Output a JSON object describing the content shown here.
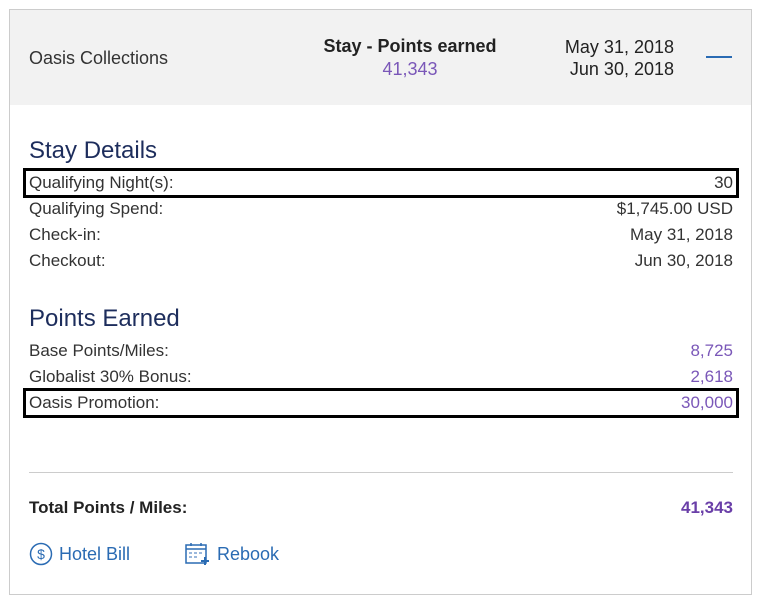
{
  "header": {
    "hotel": "Oasis Collections",
    "type": "Stay - Points earned",
    "points": "41,343",
    "date_start": "May 31, 2018",
    "date_end": "Jun 30, 2018",
    "collapse_icon": "minus-icon"
  },
  "stay_details": {
    "title": "Stay Details",
    "rows": [
      {
        "label": "Qualifying Night(s):",
        "value": "30",
        "highlighted": true
      },
      {
        "label": "Qualifying Spend:",
        "value": "$1,745.00 USD"
      },
      {
        "label": "Check-in:",
        "value": "May 31, 2018"
      },
      {
        "label": "Checkout:",
        "value": "Jun 30, 2018"
      }
    ]
  },
  "points_earned": {
    "title": "Points Earned",
    "rows": [
      {
        "label": "Base Points/Miles:",
        "value": "8,725"
      },
      {
        "label": "Globalist 30% Bonus:",
        "value": "2,618"
      },
      {
        "label": "Oasis Promotion:",
        "value": "30,000",
        "highlighted": true
      }
    ]
  },
  "total": {
    "label": "Total Points / Miles:",
    "value": "41,343"
  },
  "links": {
    "hotel_bill": "Hotel Bill",
    "rebook": "Rebook"
  },
  "colors": {
    "accent_purple": "#7a57b8",
    "link_blue": "#2a6bb3",
    "heading_navy": "#1d2d5c"
  }
}
